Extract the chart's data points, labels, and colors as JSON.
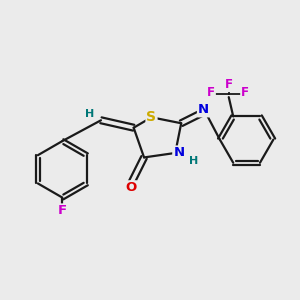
{
  "background_color": "#ebebeb",
  "bond_color": "#1a1a1a",
  "atom_colors": {
    "S": "#ccaa00",
    "N": "#0000dd",
    "O": "#dd0000",
    "F_para": "#cc00cc",
    "F_cf3": "#cc00cc",
    "H": "#007777",
    "C": "#1a1a1a"
  },
  "figsize": [
    3.0,
    3.0
  ],
  "dpi": 100,
  "xlim": [
    0,
    10
  ],
  "ylim": [
    0,
    10
  ]
}
